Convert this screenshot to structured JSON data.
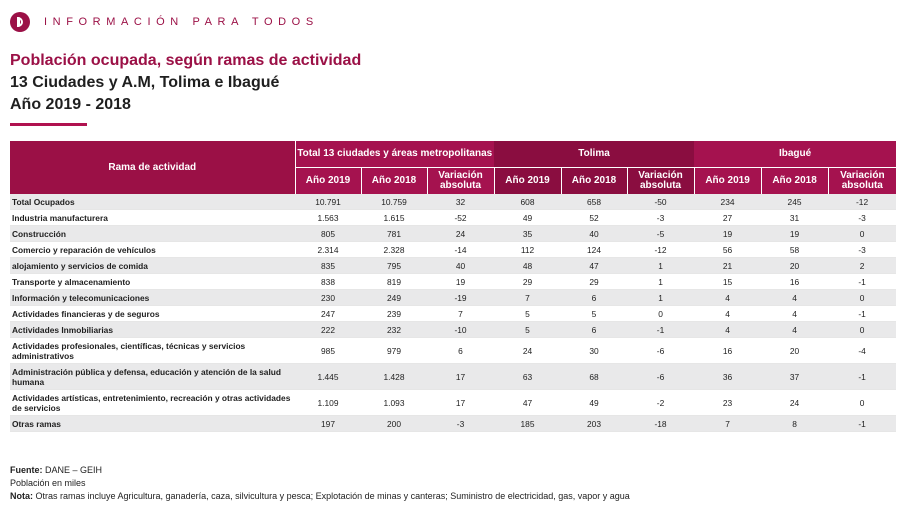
{
  "brand": {
    "text": "INFORMACIÓN PARA TODOS"
  },
  "header": {
    "title": "Población ocupada, según ramas de actividad",
    "subtitle1": "13 Ciudades y A.M, Tolima e Ibagué",
    "subtitle2": "Año 2019 - 2018"
  },
  "table": {
    "rama_header": "Rama de actividad",
    "groups": [
      "Total 13 ciudades y áreas metropolitanas",
      "Tolima",
      "Ibagué"
    ],
    "subheaders": [
      "Año 2019",
      "Año 2018",
      "Variación absoluta"
    ],
    "rows": [
      {
        "label": "Total Ocupados",
        "values": [
          "10.791",
          "10.759",
          "32",
          "608",
          "658",
          "-50",
          "234",
          "245",
          "-12"
        ]
      },
      {
        "label": "Industria manufacturera",
        "values": [
          "1.563",
          "1.615",
          "-52",
          "49",
          "52",
          "-3",
          "27",
          "31",
          "-3"
        ]
      },
      {
        "label": "Construcción",
        "values": [
          "805",
          "781",
          "24",
          "35",
          "40",
          "-5",
          "19",
          "19",
          "0"
        ]
      },
      {
        "label": "Comercio y reparación de vehículos",
        "values": [
          "2.314",
          "2.328",
          "-14",
          "112",
          "124",
          "-12",
          "56",
          "58",
          "-3"
        ]
      },
      {
        "label": "alojamiento y servicios de comida",
        "values": [
          "835",
          "795",
          "40",
          "48",
          "47",
          "1",
          "21",
          "20",
          "2"
        ]
      },
      {
        "label": "Transporte y almacenamiento",
        "values": [
          "838",
          "819",
          "19",
          "29",
          "29",
          "1",
          "15",
          "16",
          "-1"
        ]
      },
      {
        "label": "Información y telecomunicaciones",
        "values": [
          "230",
          "249",
          "-19",
          "7",
          "6",
          "1",
          "4",
          "4",
          "0"
        ]
      },
      {
        "label": "Actividades financieras y de seguros",
        "values": [
          "247",
          "239",
          "7",
          "5",
          "5",
          "0",
          "4",
          "4",
          "-1"
        ]
      },
      {
        "label": "Actividades Inmobiliarias",
        "values": [
          "222",
          "232",
          "-10",
          "5",
          "6",
          "-1",
          "4",
          "4",
          "0"
        ]
      },
      {
        "label": "Actividades profesionales, científicas, técnicas y servicios administrativos",
        "values": [
          "985",
          "979",
          "6",
          "24",
          "30",
          "-6",
          "16",
          "20",
          "-4"
        ]
      },
      {
        "label": "Administración pública y defensa, educación y atención de la salud humana",
        "values": [
          "1.445",
          "1.428",
          "17",
          "63",
          "68",
          "-6",
          "36",
          "37",
          "-1"
        ]
      },
      {
        "label": "Actividades artísticas, entretenimiento, recreación y otras actividades de servicios",
        "values": [
          "1.109",
          "1.093",
          "17",
          "47",
          "49",
          "-2",
          "23",
          "24",
          "0"
        ]
      },
      {
        "label": "Otras ramas",
        "values": [
          "197",
          "200",
          "-3",
          "185",
          "203",
          "-18",
          "7",
          "8",
          "-1"
        ]
      }
    ]
  },
  "footer": {
    "source_label": "Fuente:",
    "source_text": " DANE – GEIH",
    "units": "Población en miles",
    "note_label": "Nota:",
    "note_text": " Otras ramas incluye Agricultura, ganadería, caza, silvicultura y pesca; Explotación de minas y canteras; Suministro de electricidad, gas, vapor y agua"
  }
}
